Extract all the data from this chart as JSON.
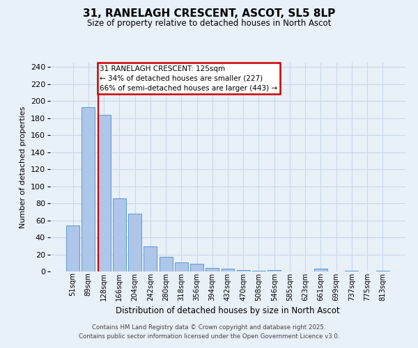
{
  "title1": "31, RANELAGH CRESCENT, ASCOT, SL5 8LP",
  "title2": "Size of property relative to detached houses in North Ascot",
  "xlabel": "Distribution of detached houses by size in North Ascot",
  "ylabel": "Number of detached properties",
  "footer1": "Contains HM Land Registry data © Crown copyright and database right 2025.",
  "footer2": "Contains public sector information licensed under the Open Government Licence v3.0.",
  "bin_labels": [
    "51sqm",
    "89sqm",
    "128sqm",
    "166sqm",
    "204sqm",
    "242sqm",
    "280sqm",
    "318sqm",
    "356sqm",
    "394sqm",
    "432sqm",
    "470sqm",
    "508sqm",
    "546sqm",
    "585sqm",
    "623sqm",
    "661sqm",
    "699sqm",
    "737sqm",
    "775sqm",
    "813sqm"
  ],
  "values": [
    54,
    193,
    184,
    86,
    68,
    29,
    17,
    11,
    9,
    4,
    3,
    2,
    1,
    2,
    0,
    0,
    3,
    0,
    1,
    0,
    1
  ],
  "bar_color": "#aec6e8",
  "bar_edge_color": "#5b9bd5",
  "grid_color": "#c8d8e8",
  "bg_color": "#e8f0f8",
  "annotation_text1": "31 RANELAGH CRESCENT: 125sqm",
  "annotation_text2": "← 34% of detached houses are smaller (227)",
  "annotation_text3": "66% of semi-detached houses are larger (443) →",
  "annotation_box_color": "#ffffff",
  "annotation_border_color": "#cc0000",
  "vline_color": "#cc0000",
  "vline_x": 1.62,
  "ylim": [
    0,
    245
  ],
  "yticks": [
    0,
    20,
    40,
    60,
    80,
    100,
    120,
    140,
    160,
    180,
    200,
    220,
    240
  ]
}
